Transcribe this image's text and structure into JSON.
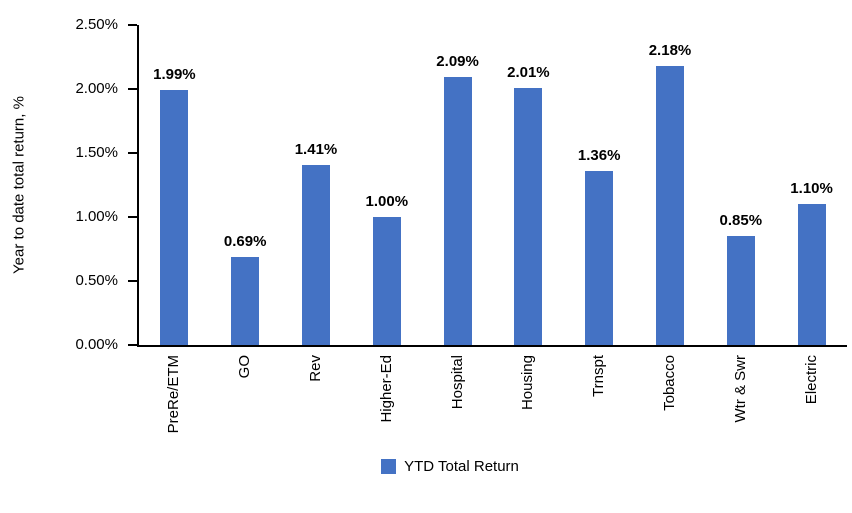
{
  "chart_data": {
    "type": "bar",
    "title": "",
    "categories": [
      "PreRe/ETM",
      "GO",
      "Rev",
      "Higher-Ed",
      "Hospital",
      "Housing",
      "Trnspt",
      "Tobacco",
      "Wtr & Swr",
      "Electric"
    ],
    "values": [
      1.99,
      0.69,
      1.41,
      1.0,
      2.09,
      2.01,
      1.36,
      2.18,
      0.85,
      1.1
    ],
    "value_labels": [
      "1.99%",
      "0.69%",
      "1.41%",
      "1.00%",
      "2.09%",
      "2.01%",
      "1.36%",
      "2.18%",
      "0.85%",
      "1.10%"
    ],
    "series_name": "YTD Total Return",
    "xlabel": "",
    "ylabel": "Year to date total return, %",
    "yticks": [
      "0.00%",
      "0.50%",
      "1.00%",
      "1.50%",
      "2.00%",
      "2.50%"
    ],
    "ylim": [
      0,
      2.5
    ],
    "grid": false,
    "legend_position": "bottom",
    "bar_color": "#4472C4",
    "axis_color": "#000000",
    "text_color": "#000000"
  }
}
